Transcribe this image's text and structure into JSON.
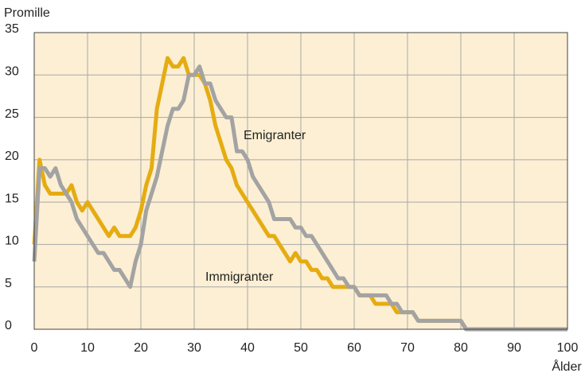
{
  "chart_data": {
    "type": "line",
    "y_label": "Promille",
    "x_label": "Ålder",
    "annotations": [
      "Emigranter",
      "Immigranter"
    ],
    "x": [
      0,
      1,
      2,
      3,
      4,
      5,
      6,
      7,
      8,
      9,
      10,
      11,
      12,
      13,
      14,
      15,
      16,
      17,
      18,
      19,
      20,
      21,
      22,
      23,
      24,
      25,
      26,
      27,
      28,
      29,
      30,
      31,
      32,
      33,
      34,
      35,
      36,
      37,
      38,
      39,
      40,
      41,
      42,
      43,
      44,
      45,
      46,
      47,
      48,
      49,
      50,
      51,
      52,
      53,
      54,
      55,
      56,
      57,
      58,
      59,
      60,
      61,
      62,
      63,
      64,
      65,
      66,
      67,
      68,
      69,
      70,
      71,
      72,
      73,
      74,
      75,
      76,
      77,
      78,
      79,
      80,
      81,
      82,
      83,
      84,
      85,
      86,
      87,
      88,
      89,
      90,
      91,
      92,
      93,
      94,
      95,
      96,
      97,
      98,
      99,
      100
    ],
    "series": [
      {
        "name": "Immigranter",
        "color": "#e5ac12",
        "values": [
          10,
          20,
          17,
          16,
          16,
          16,
          16,
          17,
          15,
          14,
          15,
          14,
          13,
          12,
          11,
          12,
          11,
          11,
          11,
          12,
          14,
          17,
          19,
          26,
          29,
          32,
          31,
          31,
          32,
          30,
          30,
          30,
          29,
          27,
          24,
          22,
          20,
          19,
          17,
          16,
          15,
          14,
          13,
          12,
          11,
          11,
          10,
          9,
          8,
          9,
          8,
          8,
          7,
          7,
          6,
          6,
          5,
          5,
          5,
          5,
          5,
          4,
          4,
          4,
          3,
          3,
          3,
          3,
          2,
          2,
          2,
          2,
          1,
          1,
          1,
          1,
          1,
          1,
          1,
          1,
          1,
          0,
          0,
          0,
          0,
          0,
          0,
          0,
          0,
          0,
          0,
          0,
          0,
          0,
          0,
          0,
          0,
          0,
          0,
          0,
          0
        ]
      },
      {
        "name": "Emigranter",
        "color": "#a3a3a3",
        "values": [
          8,
          19,
          19,
          18,
          19,
          17,
          16,
          15,
          13,
          12,
          11,
          10,
          9,
          9,
          8,
          7,
          7,
          6,
          5,
          8,
          10,
          14,
          16,
          18,
          21,
          24,
          26,
          26,
          27,
          30,
          30,
          31,
          29,
          29,
          27,
          26,
          25,
          25,
          21,
          21,
          20,
          18,
          17,
          16,
          15,
          13,
          13,
          13,
          13,
          12,
          12,
          11,
          11,
          10,
          9,
          8,
          7,
          6,
          6,
          5,
          5,
          4,
          4,
          4,
          4,
          4,
          4,
          3,
          3,
          2,
          2,
          2,
          1,
          1,
          1,
          1,
          1,
          1,
          1,
          1,
          1,
          0,
          0,
          0,
          0,
          0,
          0,
          0,
          0,
          0,
          0,
          0,
          0,
          0,
          0,
          0,
          0,
          0,
          0,
          0,
          0
        ]
      }
    ],
    "xlim": [
      0,
      100
    ],
    "xticks": [
      0,
      10,
      20,
      30,
      40,
      50,
      60,
      70,
      80,
      90,
      100
    ],
    "ylim": [
      0,
      35
    ],
    "yticks": [
      0,
      5,
      10,
      15,
      20,
      25,
      30,
      35
    ],
    "grid": true,
    "background": "#fcefd3"
  }
}
